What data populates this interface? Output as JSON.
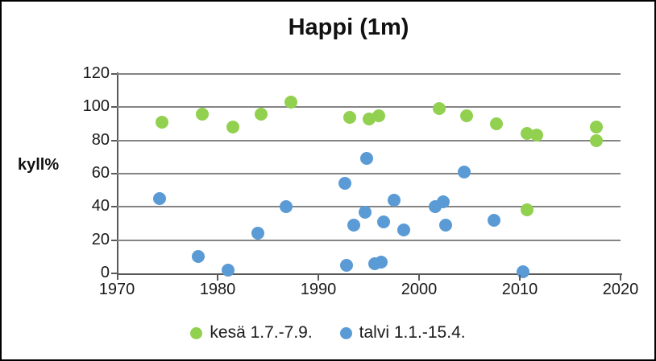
{
  "window": {
    "title": "Happi (1m)"
  },
  "chart_data": {
    "type": "scatter",
    "title": "Happi (1m)",
    "xlabel": "",
    "ylabel": "kyll%",
    "xlim": [
      1970,
      2020
    ],
    "ylim": [
      0,
      120
    ],
    "xticks": [
      1970,
      1980,
      1990,
      2000,
      2010,
      2020
    ],
    "yticks": [
      0,
      20,
      40,
      60,
      80,
      100,
      120
    ],
    "grid": "horizontal",
    "gridline_color": "#848484",
    "axis_color": "#595959",
    "legend_position": "bottom",
    "series": [
      {
        "name": "kesä 1.7.-7.9.",
        "color": "#92D050",
        "points": [
          [
            1974.5,
            91
          ],
          [
            1978.5,
            96
          ],
          [
            1981.5,
            88
          ],
          [
            1984.3,
            96
          ],
          [
            1987.3,
            103
          ],
          [
            1993.1,
            94
          ],
          [
            1995.0,
            93
          ],
          [
            1996.0,
            95
          ],
          [
            2002.0,
            99
          ],
          [
            2004.7,
            95
          ],
          [
            2007.7,
            90
          ],
          [
            2010.7,
            84
          ],
          [
            2011.7,
            83
          ],
          [
            2010.7,
            38
          ],
          [
            2017.6,
            88
          ],
          [
            2017.6,
            80
          ]
        ]
      },
      {
        "name": "talvi 1.1.-15.4.",
        "color": "#5B9BD5",
        "points": [
          [
            1974.2,
            45
          ],
          [
            1978.1,
            10
          ],
          [
            1981.0,
            2
          ],
          [
            1984.0,
            24
          ],
          [
            1986.8,
            40
          ],
          [
            1992.6,
            54
          ],
          [
            1992.8,
            5
          ],
          [
            1993.5,
            29
          ],
          [
            1994.6,
            37
          ],
          [
            1994.8,
            69
          ],
          [
            1995.6,
            6
          ],
          [
            1996.2,
            7
          ],
          [
            1996.5,
            31
          ],
          [
            1997.5,
            44
          ],
          [
            1998.5,
            26
          ],
          [
            2001.6,
            40
          ],
          [
            2002.4,
            43
          ],
          [
            2002.6,
            29
          ],
          [
            2004.5,
            61
          ],
          [
            2007.4,
            32
          ],
          [
            2010.3,
            1
          ]
        ]
      }
    ]
  }
}
